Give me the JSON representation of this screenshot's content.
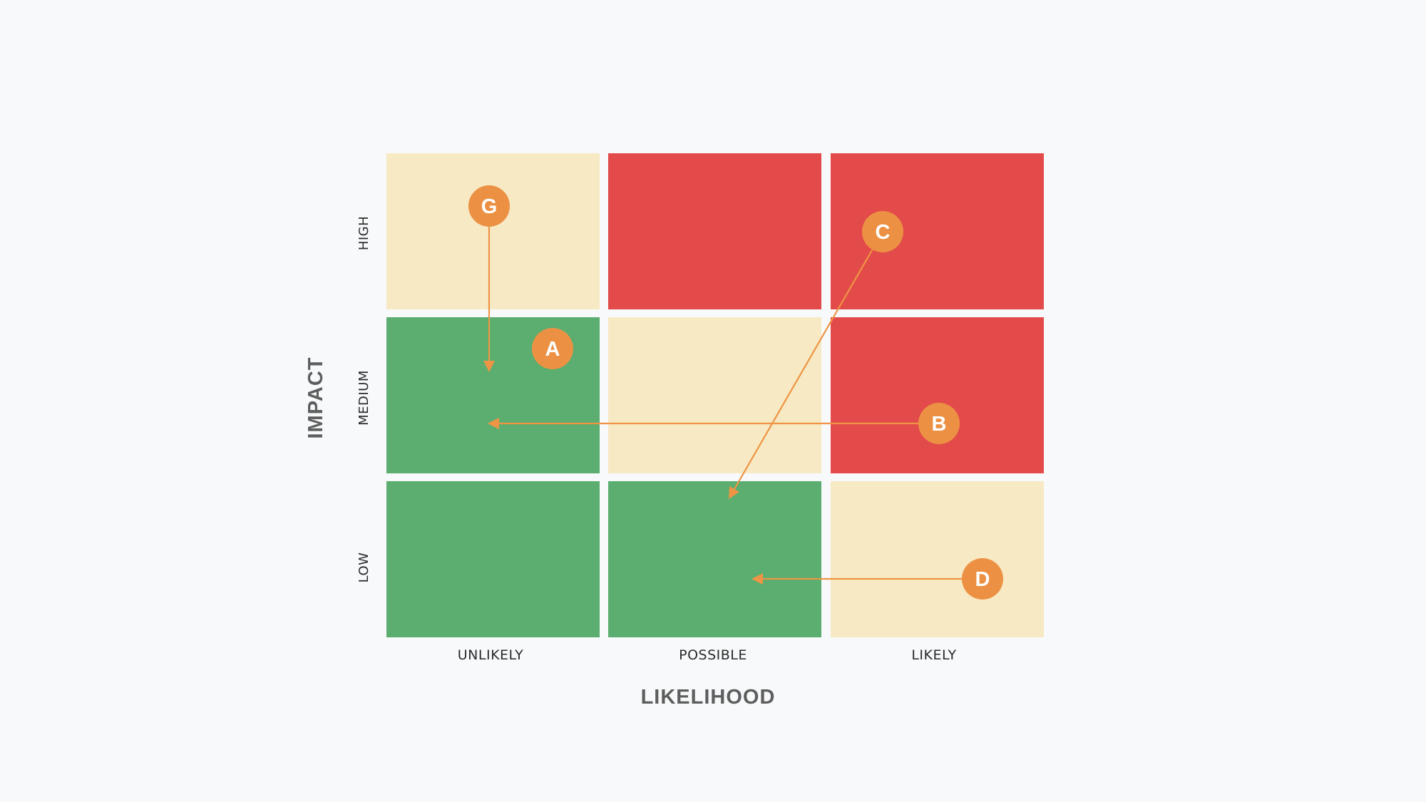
{
  "matrix": {
    "x_axis_title": "LIKELIHOOD",
    "y_axis_title": "IMPACT",
    "columns": [
      "UNLIKELY",
      "POSSIBLE",
      "LIKELY"
    ],
    "rows": [
      "HIGH",
      "MEDIUM",
      "LOW"
    ],
    "colors": {
      "red": "#e34b4a",
      "cream": "#f7e9c3",
      "green": "#5bae70",
      "marker": "#ec9144",
      "arrow": "#ef9444"
    },
    "cells": [
      [
        "cream",
        "red",
        "red"
      ],
      [
        "green",
        "cream",
        "red"
      ],
      [
        "green",
        "green",
        "cream"
      ]
    ]
  },
  "risks": [
    {
      "label": "G",
      "from": {
        "likelihood": "UNLIKELY",
        "impact": "HIGH"
      },
      "to": {
        "likelihood": "UNLIKELY",
        "impact": "MEDIUM"
      }
    },
    {
      "label": "A",
      "from": {
        "likelihood": "UNLIKELY",
        "impact": "MEDIUM"
      },
      "to": null
    },
    {
      "label": "C",
      "from": {
        "likelihood": "LIKELY",
        "impact": "HIGH"
      },
      "to": {
        "likelihood": "POSSIBLE",
        "impact": "LOW"
      }
    },
    {
      "label": "B",
      "from": {
        "likelihood": "LIKELY",
        "impact": "MEDIUM"
      },
      "to": {
        "likelihood": "UNLIKELY",
        "impact": "MEDIUM"
      }
    },
    {
      "label": "D",
      "from": {
        "likelihood": "LIKELY",
        "impact": "LOW"
      },
      "to": {
        "likelihood": "POSSIBLE",
        "impact": "LOW"
      }
    }
  ]
}
